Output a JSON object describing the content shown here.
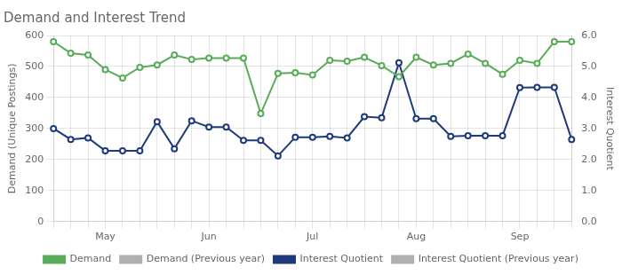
{
  "chart_data": {
    "type": "line",
    "title": "Demand and Interest Trend",
    "ylabel": "Demand (Unique Postings)",
    "y2label": "Interest Quotient",
    "categories": [
      null,
      null,
      null,
      "May",
      null,
      null,
      null,
      null,
      null,
      "Jun",
      null,
      null,
      null,
      null,
      null,
      "Jul",
      null,
      null,
      null,
      null,
      null,
      "Aug",
      null,
      null,
      null,
      null,
      null,
      "Sep",
      null,
      null,
      null
    ],
    "ylim": [
      0,
      600
    ],
    "yticks": [
      0,
      100,
      200,
      300,
      400,
      500,
      600
    ],
    "y2lim": [
      0.0,
      6.0
    ],
    "y2ticks": [
      {
        "value": 0.0,
        "label": "0.0"
      },
      {
        "value": 1.0,
        "label": "1.0"
      },
      {
        "value": 2.0,
        "label": "2.0"
      },
      {
        "value": 3.0,
        "label": "3.0"
      },
      {
        "value": 4.0,
        "label": "4.0"
      },
      {
        "value": 5.0,
        "label": "5.0"
      },
      {
        "value": 6.0,
        "label": "6.0"
      }
    ],
    "grid": true,
    "legend": "bottom",
    "series": [
      {
        "name": "Demand",
        "color": "#5aab5a",
        "marker": "circle",
        "values": [
          580,
          543,
          537,
          490,
          463,
          497,
          505,
          537,
          523,
          527,
          527,
          527,
          348,
          478,
          480,
          473,
          520,
          517,
          530,
          503,
          467,
          530,
          505,
          510,
          540,
          510,
          475,
          520,
          510,
          580,
          580
        ]
      },
      {
        "name": "Demand (Previous year)",
        "color": "#b0b0b0",
        "marker": "circle",
        "values": [
          null,
          null,
          null,
          null,
          null,
          null,
          null,
          null,
          null,
          null,
          null,
          null,
          null,
          null,
          null,
          null,
          null,
          null,
          null,
          null,
          null,
          null,
          null,
          null,
          null,
          null,
          null,
          null,
          null,
          null,
          null
        ]
      },
      {
        "name": "Interest Quotient",
        "color": "#1e3a7a",
        "marker": "circle",
        "axis": "y2",
        "values": [
          3.0,
          2.65,
          2.7,
          2.28,
          2.28,
          2.28,
          3.22,
          2.35,
          3.25,
          3.05,
          3.05,
          2.62,
          2.62,
          2.12,
          2.72,
          2.72,
          2.75,
          2.7,
          3.38,
          3.35,
          5.12,
          3.32,
          3.32,
          2.75,
          2.77,
          2.77,
          2.77,
          4.32,
          4.33,
          4.33,
          2.65
        ]
      },
      {
        "name": "Interest Quotient (Previous year)",
        "color": "#b0b0b0",
        "marker": "circle",
        "axis": "y2",
        "values": [
          null,
          null,
          null,
          null,
          null,
          null,
          null,
          null,
          null,
          null,
          null,
          null,
          null,
          null,
          null,
          null,
          null,
          null,
          null,
          null,
          null,
          null,
          null,
          null,
          null,
          null,
          null,
          null,
          null,
          null,
          null
        ]
      }
    ]
  }
}
